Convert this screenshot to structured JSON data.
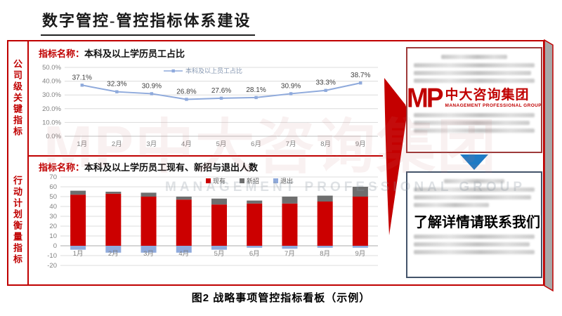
{
  "page": {
    "title": "数字管控-管控指标体系建设",
    "caption": "图2 战略事项管控指标看板（示例）"
  },
  "sidebar": {
    "top_label": "公司级关键指标",
    "bottom_label": "行动计划衡量指标"
  },
  "company_chart": {
    "header_prefix": "指标名称：",
    "header_title": "本科及以上学历员工占比"
  },
  "action_chart": {
    "header_prefix": "指标名称：",
    "header_title": "本科及以上学历员工现有、新招与退出人数"
  },
  "right_panel": {
    "logo_mark": "MP",
    "logo_name": "中大咨询集团",
    "logo_subtitle": "MANAGEMENT PROFESSIONAL GROUP",
    "contact_text": "了解详情请联系我们"
  },
  "watermark": {
    "text": "MP中大咨询集团",
    "subtext": "MANAGEMENT PROFESSIONAL GROUP"
  },
  "chart_data": [
    {
      "type": "line",
      "title": "本科及以上学历员工占比",
      "legend": "本科及以上员工占比",
      "x": [
        "1月",
        "2月",
        "3月",
        "4月",
        "5月",
        "6月",
        "7月",
        "8月",
        "9月"
      ],
      "values": [
        37.1,
        32.3,
        30.9,
        26.8,
        27.6,
        28.1,
        30.9,
        33.3,
        38.7
      ],
      "unit": "%",
      "ylim": [
        0,
        50
      ],
      "ytick_step": 10,
      "line_color": "#8FAADC",
      "grid": true,
      "legend_position": "top-center"
    },
    {
      "type": "bar",
      "stacked": true,
      "title": "本科及以上学历员工现有、新招与退出人数",
      "categories": [
        "1月",
        "2月",
        "3月",
        "4月",
        "5月",
        "6月",
        "7月",
        "8月",
        "9月"
      ],
      "series": [
        {
          "name": "现有",
          "color": "#CC0000",
          "values": [
            52,
            53,
            50,
            47,
            42,
            43,
            43,
            45,
            50
          ]
        },
        {
          "name": "新招",
          "color": "#6E6E6E",
          "values": [
            4,
            2,
            4,
            3,
            6,
            3,
            7,
            6,
            10
          ]
        },
        {
          "name": "退出",
          "color": "#8FAADC",
          "values": [
            -4,
            -7,
            -7,
            -7,
            -4,
            -2,
            -3,
            -2,
            -2
          ]
        }
      ],
      "ylim": [
        -20,
        70
      ],
      "ytick_step": 10,
      "grid": true,
      "legend_position": "top-center"
    }
  ],
  "colors": {
    "accent_red": "#C00000",
    "bar_red": "#CC0000",
    "bar_gray": "#6E6E6E",
    "bar_blue": "#8FAADC",
    "line_blue": "#8FAADC",
    "box_border_red": "#9E3A3A",
    "box_border_slate": "#44546A",
    "arrow_blue": "#1F7AC4",
    "gridline": "#DCDCDC",
    "axis_text": "#808080"
  }
}
